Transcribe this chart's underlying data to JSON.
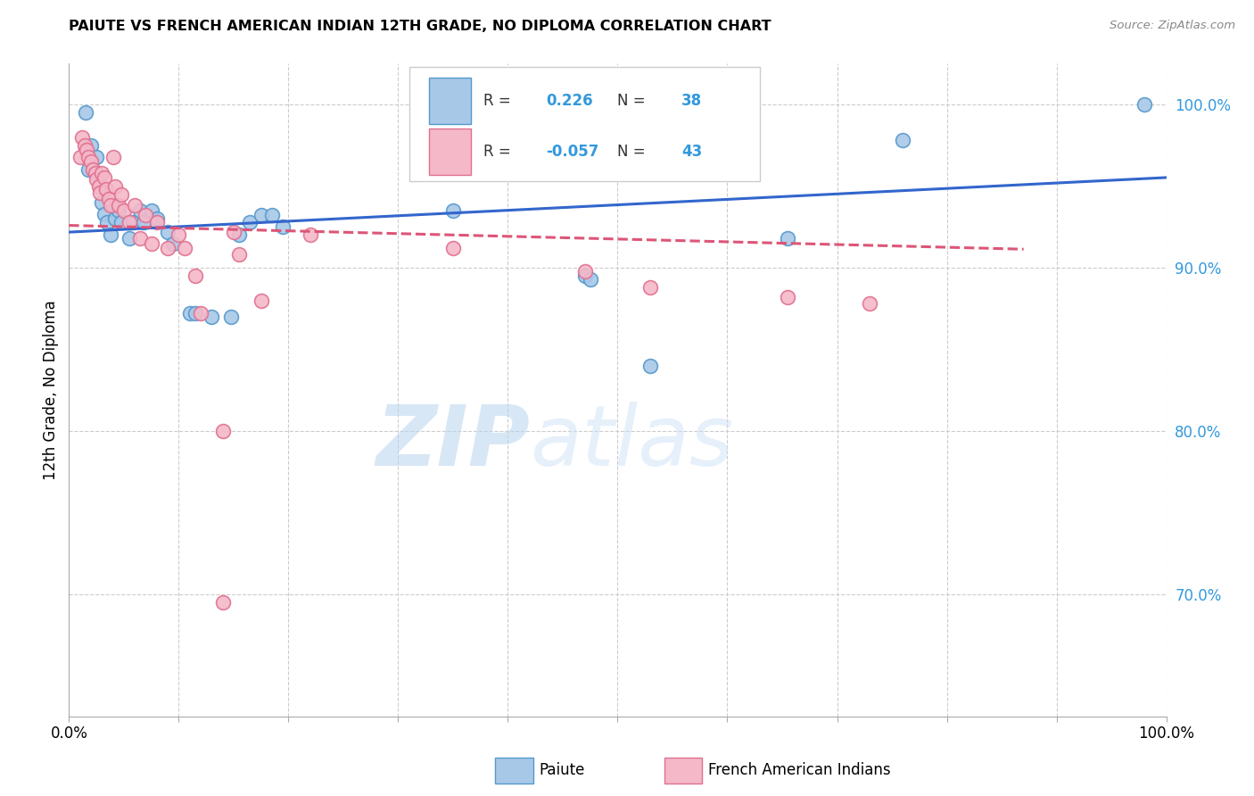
{
  "title": "PAIUTE VS FRENCH AMERICAN INDIAN 12TH GRADE, NO DIPLOMA CORRELATION CHART",
  "source": "Source: ZipAtlas.com",
  "ylabel": "12th Grade, No Diploma",
  "y_ticks_right": [
    "100.0%",
    "90.0%",
    "80.0%",
    "70.0%"
  ],
  "y_tick_values": [
    1.0,
    0.9,
    0.8,
    0.7
  ],
  "xlim": [
    0.0,
    1.0
  ],
  "ylim": [
    0.625,
    1.025
  ],
  "r_blue": 0.226,
  "r_pink": -0.057,
  "watermark_zip": "ZIP",
  "watermark_atlas": "atlas",
  "blue_color": "#a8c8e8",
  "pink_color": "#f4b8c8",
  "blue_edge_color": "#5599cc",
  "pink_edge_color": "#e07090",
  "blue_line_color": "#3366cc",
  "pink_line_color": "#dd5577",
  "grid_color": "#cccccc",
  "background_color": "#ffffff",
  "blue_scatter": [
    [
      0.015,
      0.995
    ],
    [
      0.018,
      0.96
    ],
    [
      0.02,
      0.975
    ],
    [
      0.025,
      0.958
    ],
    [
      0.025,
      0.968
    ],
    [
      0.028,
      0.95
    ],
    [
      0.03,
      0.94
    ],
    [
      0.032,
      0.933
    ],
    [
      0.035,
      0.928
    ],
    [
      0.038,
      0.92
    ],
    [
      0.04,
      0.938
    ],
    [
      0.042,
      0.93
    ],
    [
      0.045,
      0.935
    ],
    [
      0.048,
      0.928
    ],
    [
      0.055,
      0.918
    ],
    [
      0.058,
      0.928
    ],
    [
      0.065,
      0.935
    ],
    [
      0.068,
      0.928
    ],
    [
      0.075,
      0.935
    ],
    [
      0.08,
      0.93
    ],
    [
      0.09,
      0.922
    ],
    [
      0.095,
      0.915
    ],
    [
      0.11,
      0.872
    ],
    [
      0.115,
      0.872
    ],
    [
      0.13,
      0.87
    ],
    [
      0.148,
      0.87
    ],
    [
      0.155,
      0.92
    ],
    [
      0.165,
      0.928
    ],
    [
      0.175,
      0.932
    ],
    [
      0.185,
      0.932
    ],
    [
      0.195,
      0.925
    ],
    [
      0.35,
      0.935
    ],
    [
      0.47,
      0.895
    ],
    [
      0.475,
      0.893
    ],
    [
      0.53,
      0.84
    ],
    [
      0.655,
      0.918
    ],
    [
      0.76,
      0.978
    ],
    [
      0.98,
      1.0
    ]
  ],
  "pink_scatter": [
    [
      0.01,
      0.968
    ],
    [
      0.012,
      0.98
    ],
    [
      0.014,
      0.975
    ],
    [
      0.016,
      0.972
    ],
    [
      0.018,
      0.968
    ],
    [
      0.02,
      0.965
    ],
    [
      0.022,
      0.96
    ],
    [
      0.024,
      0.958
    ],
    [
      0.025,
      0.954
    ],
    [
      0.027,
      0.95
    ],
    [
      0.028,
      0.946
    ],
    [
      0.03,
      0.958
    ],
    [
      0.032,
      0.955
    ],
    [
      0.034,
      0.948
    ],
    [
      0.036,
      0.942
    ],
    [
      0.038,
      0.938
    ],
    [
      0.04,
      0.968
    ],
    [
      0.042,
      0.95
    ],
    [
      0.045,
      0.938
    ],
    [
      0.048,
      0.945
    ],
    [
      0.05,
      0.935
    ],
    [
      0.055,
      0.928
    ],
    [
      0.06,
      0.938
    ],
    [
      0.065,
      0.918
    ],
    [
      0.07,
      0.932
    ],
    [
      0.075,
      0.915
    ],
    [
      0.08,
      0.928
    ],
    [
      0.09,
      0.912
    ],
    [
      0.1,
      0.92
    ],
    [
      0.105,
      0.912
    ],
    [
      0.115,
      0.895
    ],
    [
      0.12,
      0.872
    ],
    [
      0.14,
      0.8
    ],
    [
      0.15,
      0.922
    ],
    [
      0.155,
      0.908
    ],
    [
      0.175,
      0.88
    ],
    [
      0.22,
      0.92
    ],
    [
      0.35,
      0.912
    ],
    [
      0.47,
      0.898
    ],
    [
      0.53,
      0.888
    ],
    [
      0.655,
      0.882
    ],
    [
      0.73,
      0.878
    ],
    [
      0.14,
      0.695
    ]
  ]
}
